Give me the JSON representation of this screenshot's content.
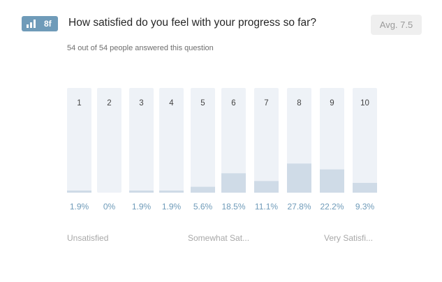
{
  "question": {
    "badge_icon": "rating-scale-icon",
    "badge_code": "8f",
    "title": "How satisfied do you feel with your progress so far?",
    "average": "Avg. 7.5",
    "answered": "54 out of 54 people answered this question"
  },
  "scale_labels": {
    "low": "Unsatisfied",
    "mid": "Somewhat Sat...",
    "high": "Very Satisfi..."
  },
  "colors": {
    "track": "#eef2f7",
    "fill": "#cfdbe7",
    "accent": "#6f9bb9"
  },
  "chart_data": {
    "type": "bar",
    "categories": [
      "1",
      "2",
      "3",
      "4",
      "5",
      "6",
      "7",
      "8",
      "9",
      "10"
    ],
    "values": [
      1.9,
      0,
      1.9,
      1.9,
      5.6,
      18.5,
      11.1,
      27.8,
      22.2,
      9.3
    ],
    "value_labels": [
      "1.9%",
      "0%",
      "1.9%",
      "1.9%",
      "5.6%",
      "18.5%",
      "11.1%",
      "27.8%",
      "22.2%",
      "9.3%"
    ],
    "ylim": [
      0,
      100
    ],
    "title": "",
    "xlabel": "",
    "ylabel": ""
  }
}
